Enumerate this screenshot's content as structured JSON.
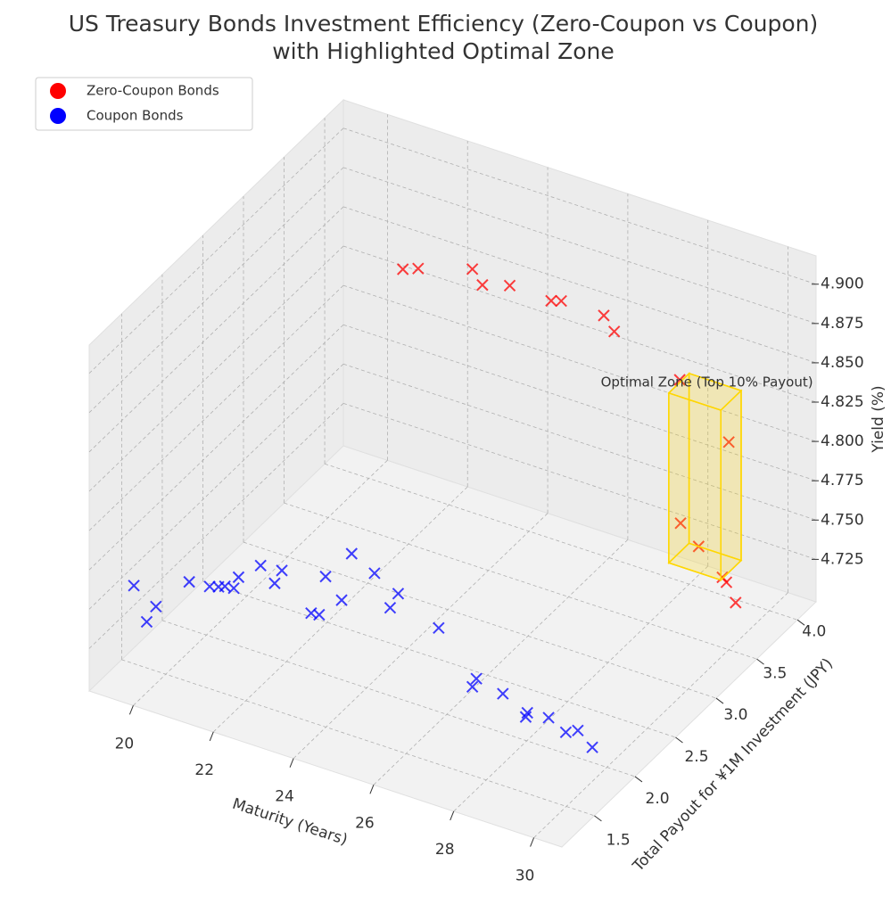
{
  "chart_data": {
    "type": "scatter3d",
    "title": [
      "US Treasury Bonds Investment Efficiency (Zero-Coupon vs Coupon)",
      "with Highlighted Optimal Zone"
    ],
    "xlabel": "Maturity (Years)",
    "ylabel": "Total Payout for ¥1M Investment (JPY)",
    "zlabel": "Yield (%)",
    "xlim": [
      18.9,
      30.7
    ],
    "ylim": [
      1.1,
      4.23
    ],
    "zlim": [
      4.698,
      4.918
    ],
    "xticks": [
      20,
      22,
      24,
      26,
      28,
      30
    ],
    "yticks": [
      1.5,
      {
        "value": 2,
        "label": "2.0"
      },
      2.5,
      {
        "value": 3,
        "label": "3.0"
      },
      3.5,
      {
        "value": 4,
        "label": "4.0"
      }
    ],
    "zticks": [
      4.725,
      {
        "value": 4.75,
        "label": "4.750"
      },
      4.775,
      {
        "value": 4.8,
        "label": "4.800"
      },
      4.825,
      {
        "value": 4.85,
        "label": "4.850"
      },
      4.875,
      {
        "value": 4.9,
        "label": "4.900"
      }
    ],
    "grid": true,
    "legend": "upper left",
    "series": [
      {
        "name": "Zero-Coupon Bonds",
        "color": "red",
        "x": [
          23.0,
          23.3,
          24.35,
          24.54,
          25.06,
          25.85,
          26.04,
          26.84,
          27.04,
          28.25,
          29.15,
          28.27,
          28.6,
          29.03,
          29.11,
          29.28
        ],
        "y": [
          2.94,
          2.98,
          3.13,
          3.16,
          3.24,
          3.36,
          3.39,
          3.52,
          3.55,
          3.76,
          3.92,
          3.76,
          3.82,
          3.9,
          3.91,
          3.94
        ],
        "z": [
          4.909,
          4.91,
          4.911,
          4.901,
          4.901,
          4.892,
          4.892,
          4.883,
          4.873,
          4.842,
          4.802,
          4.751,
          4.736,
          4.716,
          4.713,
          4.7
        ]
      },
      {
        "name": "Coupon Bonds",
        "color": "blue",
        "x": [
          19.61,
          19.91,
          20.12,
          20.87,
          21.34,
          21.54,
          21.68,
          21.88,
          22.0,
          22.49,
          22.82,
          22.98,
          23.65,
          23.83,
          23.97,
          24.33,
          24.56,
          25.09,
          25.44,
          25.62,
          26.55,
          27.31,
          27.41,
          28.01,
          28.52,
          28.56,
          29.05,
          29.44,
          29.72,
          30.04
        ],
        "y": [
          1.3,
          1.31,
          1.32,
          1.36,
          1.38,
          1.39,
          1.4,
          1.41,
          1.41,
          1.44,
          1.45,
          1.46,
          1.49,
          1.5,
          1.51,
          1.53,
          1.54,
          1.56,
          1.58,
          1.59,
          1.63,
          1.67,
          1.67,
          1.7,
          1.73,
          1.73,
          1.75,
          1.77,
          1.78,
          1.8
        ],
        "z": [
          4.761,
          4.74,
          4.751,
          4.771,
          4.771,
          4.772,
          4.773,
          4.773,
          4.781,
          4.791,
          4.782,
          4.791,
          4.768,
          4.768,
          4.793,
          4.78,
          4.811,
          4.802,
          4.782,
          4.792,
          4.776,
          4.743,
          4.749,
          4.743,
          4.731,
          4.734,
          4.734,
          4.727,
          4.73,
          4.721
        ]
      }
    ],
    "optimal_zone": {
      "label": "Optimal Zone (Top 10% Payout)",
      "color": "gold",
      "x": [
        28.3,
        29.6
      ],
      "y": [
        3.6,
        3.85
      ],
      "z": [
        4.734,
        4.842
      ]
    }
  }
}
